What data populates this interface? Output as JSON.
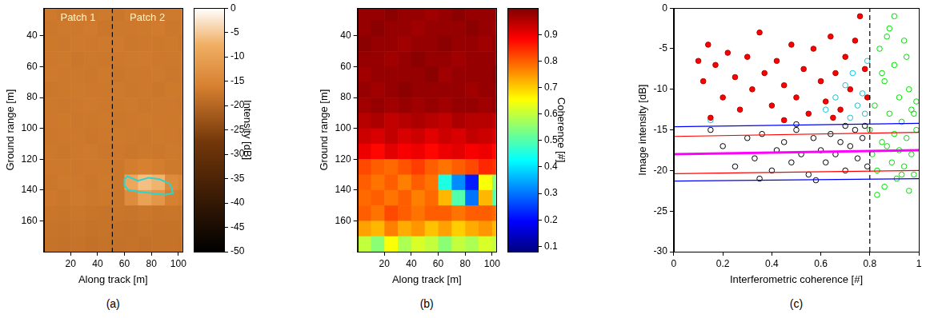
{
  "chart_data": [
    {
      "type": "heatmap",
      "panel_label": "(a)",
      "color": "copper",
      "grid": false,
      "x_label": "Along track [m]",
      "y_label": "Ground range [m]",
      "xlim": [
        0,
        103
      ],
      "xticks": [
        20,
        40,
        60,
        80,
        100
      ],
      "ylim": [
        22,
        180
      ],
      "yticks": [
        40,
        60,
        80,
        100,
        120,
        140,
        160
      ],
      "x_edges": [
        0,
        10,
        20,
        30,
        40,
        50,
        60,
        70,
        80,
        90,
        100,
        103
      ],
      "y_edges": [
        22,
        30,
        40,
        50,
        60,
        70,
        80,
        90,
        100,
        110,
        120,
        130,
        140,
        150,
        160,
        170,
        180
      ],
      "cells": [
        [
          -17,
          -17.5,
          -16.8,
          -17.2,
          -17,
          -17.4,
          -16.9,
          -17.1,
          -17.3,
          -17,
          -17.2
        ],
        [
          -17.3,
          -17,
          -17.2,
          -16.9,
          -17.4,
          -17.1,
          -17.2,
          -17,
          -16.8,
          -17.3,
          -17.1
        ],
        [
          -17.1,
          -17.3,
          -17,
          -17.2,
          -17,
          -16.9,
          -17.3,
          -17.2,
          -17.1,
          -17,
          -17.4
        ],
        [
          -17.2,
          -17,
          -17.4,
          -17.1,
          -17.3,
          -17.2,
          -17,
          -16.9,
          -17.2,
          -17.1,
          -17
        ],
        [
          -17,
          -17.2,
          -17.1,
          -17.3,
          -17,
          -17.4,
          -17.1,
          -17.2,
          -17,
          -17.3,
          -17.2
        ],
        [
          -17.4,
          -17.1,
          -17,
          -17.2,
          -17.1,
          -17,
          -17.3,
          -17.1,
          -17.4,
          -17,
          -17.1
        ],
        [
          -17.1,
          -17.3,
          -17.2,
          -17,
          -17.2,
          -17.1,
          -17,
          -17.3,
          -17.1,
          -17.2,
          -17.3
        ],
        [
          -17.2,
          -17,
          -17.3,
          -17.1,
          -17,
          -17.3,
          -17.2,
          -17,
          -17.2,
          -17.1,
          -17
        ],
        [
          -17.3,
          -17.2,
          -17.1,
          -17.4,
          -17.2,
          -17,
          -17.1,
          -17.3,
          -17,
          -17.2,
          -17.3
        ],
        [
          -17.1,
          -17.4,
          -17.2,
          -17,
          -17.3,
          -17.2,
          -17.4,
          -17.1,
          -17.3,
          -17,
          -17.2
        ],
        [
          -17.2,
          -17.1,
          -17.3,
          -17.2,
          -17.1,
          -17.3,
          -16.5,
          -16,
          -16.5,
          -17,
          -17.1
        ],
        [
          -17.5,
          -17,
          -17.2,
          -17.4,
          -17,
          -17.3,
          -9,
          -6,
          -7,
          -14,
          -15
        ],
        [
          -17.2,
          -17.5,
          -17,
          -17.3,
          -17.1,
          -17.4,
          -14,
          -10,
          -12,
          -16,
          -16.5
        ],
        [
          -17.6,
          -17.8,
          -17.5,
          -17.7,
          -17.9,
          -17.6,
          -17.8,
          -17.5,
          -17.7,
          -17.6,
          -17.8
        ],
        [
          -17.9,
          -18,
          -17.8,
          -18.1,
          -17.9,
          -18,
          -18.2,
          -17.9,
          -18,
          -18.1,
          -17.9
        ],
        [
          -18.1,
          -18.2,
          -18,
          -18.3,
          -18.1,
          -18.2,
          -18,
          -18.3,
          -18.1,
          -18,
          -18.2
        ]
      ],
      "colorbar": {
        "label": "Intensity [dB]",
        "lim": [
          -50,
          0
        ],
        "ticks": [
          -50,
          -45,
          -40,
          -35,
          -30,
          -25,
          -20,
          -15,
          -10,
          -5,
          0
        ]
      },
      "patch_labels": [
        "Patch 1",
        "Patch 2"
      ],
      "patch_boundary": 51,
      "contour": {
        "color": "#2ad4d4",
        "x": [
          60,
          62,
          70,
          78,
          86,
          94,
          96,
          90,
          80,
          70,
          63,
          60
        ],
        "y": [
          133,
          131,
          134,
          132,
          133,
          136,
          142,
          143,
          142,
          141,
          140,
          137
        ]
      }
    },
    {
      "type": "heatmap",
      "panel_label": "(b)",
      "color": "jet",
      "grid": false,
      "x_label": "Along track [m]",
      "y_label": "Ground range [m]",
      "xlim": [
        0,
        103
      ],
      "xticks": [
        20,
        40,
        60,
        80,
        100
      ],
      "ylim": [
        22,
        180
      ],
      "yticks": [
        40,
        60,
        80,
        100,
        120,
        140,
        160
      ],
      "x_edges": [
        0,
        10,
        20,
        30,
        40,
        50,
        60,
        70,
        80,
        90,
        100,
        103
      ],
      "y_edges": [
        22,
        30,
        40,
        50,
        60,
        70,
        80,
        90,
        100,
        110,
        120,
        130,
        140,
        150,
        160,
        170,
        180
      ],
      "cells": [
        [
          0.98,
          0.98,
          0.99,
          0.98,
          0.98,
          0.97,
          0.98,
          0.99,
          0.98,
          0.98,
          0.98
        ],
        [
          0.98,
          0.99,
          0.98,
          0.98,
          0.97,
          0.98,
          0.98,
          0.98,
          0.99,
          0.98,
          0.97
        ],
        [
          0.99,
          0.98,
          0.98,
          0.97,
          0.98,
          0.98,
          0.99,
          0.98,
          0.98,
          0.97,
          0.98
        ],
        [
          0.98,
          0.98,
          0.97,
          0.98,
          0.99,
          0.98,
          0.98,
          0.97,
          0.98,
          0.98,
          0.98
        ],
        [
          0.97,
          0.98,
          0.98,
          0.98,
          0.98,
          0.99,
          0.97,
          0.98,
          0.98,
          0.98,
          0.99
        ],
        [
          0.98,
          0.97,
          0.98,
          0.99,
          0.98,
          0.98,
          0.98,
          0.98,
          0.97,
          0.98,
          0.98
        ],
        [
          0.97,
          0.98,
          0.97,
          0.98,
          0.97,
          0.98,
          0.97,
          0.98,
          0.98,
          0.97,
          0.98
        ],
        [
          0.95,
          0.96,
          0.94,
          0.95,
          0.96,
          0.95,
          0.94,
          0.96,
          0.95,
          0.95,
          0.94
        ],
        [
          0.93,
          0.92,
          0.94,
          0.92,
          0.93,
          0.91,
          0.93,
          0.92,
          0.94,
          0.93,
          0.92
        ],
        [
          0.9,
          0.88,
          0.91,
          0.89,
          0.9,
          0.88,
          0.9,
          0.91,
          0.89,
          0.9,
          0.88
        ],
        [
          0.82,
          0.8,
          0.79,
          0.81,
          0.83,
          0.8,
          0.78,
          0.8,
          0.82,
          0.85,
          0.84
        ],
        [
          0.8,
          0.78,
          0.8,
          0.77,
          0.8,
          0.78,
          0.45,
          0.32,
          0.22,
          0.65,
          0.55
        ],
        [
          0.79,
          0.8,
          0.78,
          0.8,
          0.77,
          0.79,
          0.72,
          0.5,
          0.3,
          0.72,
          0.5
        ],
        [
          0.8,
          0.78,
          0.82,
          0.8,
          0.78,
          0.8,
          0.8,
          0.78,
          0.8,
          0.8,
          0.79
        ],
        [
          0.74,
          0.72,
          0.77,
          0.73,
          0.75,
          0.71,
          0.74,
          0.7,
          0.73,
          0.75,
          0.72
        ],
        [
          0.6,
          0.55,
          0.65,
          0.58,
          0.62,
          0.6,
          0.55,
          0.6,
          0.58,
          0.62,
          0.6
        ]
      ],
      "colorbar": {
        "label": "Coherence [#]",
        "lim": [
          0.08,
          1
        ],
        "ticks": [
          0.1,
          0.2,
          0.3,
          0.4,
          0.5,
          0.6,
          0.7,
          0.8,
          0.9
        ]
      }
    },
    {
      "type": "scatter",
      "panel_label": "(c)",
      "grid": false,
      "x_label": "Interferometric coherence [#]",
      "y_label": "Image intensity [dB]",
      "xlim": [
        0,
        1
      ],
      "xticks": [
        0,
        0.2,
        0.4,
        0.6,
        0.8,
        1
      ],
      "ylim": [
        -30,
        0
      ],
      "yticks": [
        -30,
        -25,
        -20,
        -15,
        -10,
        -5,
        0
      ],
      "series": [
        {
          "type": "scatter",
          "marker": "filled",
          "color": "#ff0000",
          "x": [
            0.1,
            0.12,
            0.14,
            0.17,
            0.2,
            0.22,
            0.25,
            0.27,
            0.3,
            0.32,
            0.35,
            0.37,
            0.4,
            0.42,
            0.45,
            0.48,
            0.5,
            0.53,
            0.55,
            0.57,
            0.6,
            0.62,
            0.64,
            0.66,
            0.68,
            0.7,
            0.72,
            0.74,
            0.76,
            0.78,
            0.79,
            0.15,
            0.45,
            0.65
          ],
          "y": [
            -6.5,
            -9,
            -4.5,
            -7,
            -11,
            -5.5,
            -8.5,
            -12.5,
            -6,
            -10,
            -3,
            -8,
            -12,
            -6.5,
            -9.5,
            -4.5,
            -11,
            -7.5,
            -13,
            -5,
            -9,
            -11.5,
            -3.5,
            -8,
            -12.5,
            -6,
            -10,
            -4,
            -1,
            -7.5,
            -11,
            -13.5,
            -13.8,
            -13.5
          ]
        },
        {
          "type": "scatter",
          "marker": "open",
          "color": "#17bfd0",
          "x": [
            0.62,
            0.66,
            0.7,
            0.73,
            0.75,
            0.77,
            0.79,
            0.78,
            0.15,
            0.72
          ],
          "y": [
            -12.5,
            -11,
            -9.5,
            -8,
            -12,
            -10.5,
            -6.5,
            -13,
            -13.8,
            -13.5
          ]
        },
        {
          "type": "scatter",
          "marker": "open",
          "color": "#000000",
          "x": [
            0.15,
            0.2,
            0.25,
            0.3,
            0.33,
            0.36,
            0.4,
            0.42,
            0.45,
            0.48,
            0.5,
            0.52,
            0.55,
            0.57,
            0.6,
            0.62,
            0.64,
            0.66,
            0.68,
            0.7,
            0.72,
            0.74,
            0.75,
            0.77,
            0.79,
            0.78,
            0.35,
            0.58,
            0.5,
            0.7
          ],
          "y": [
            -15,
            -17,
            -19.5,
            -16,
            -18.5,
            -15.5,
            -20,
            -17.5,
            -16.5,
            -19,
            -15,
            -18,
            -20.5,
            -16,
            -17.5,
            -19,
            -15.5,
            -18,
            -16.5,
            -20,
            -17,
            -15,
            -18.5,
            -16,
            -19.5,
            -14.5,
            -21,
            -21.2,
            -14.3,
            -14.5
          ]
        },
        {
          "type": "scatter",
          "marker": "open",
          "color": "#00dd00",
          "x": [
            0.8,
            0.81,
            0.82,
            0.83,
            0.84,
            0.85,
            0.86,
            0.86,
            0.87,
            0.88,
            0.88,
            0.89,
            0.9,
            0.9,
            0.91,
            0.92,
            0.92,
            0.93,
            0.94,
            0.94,
            0.95,
            0.96,
            0.96,
            0.97,
            0.98,
            0.98,
            0.99,
            0.99,
            0.83,
            0.9,
            0.85,
            0.95,
            0.87,
            0.97,
            0.93
          ],
          "y": [
            -15,
            -18,
            -12,
            -20,
            -5,
            -16.5,
            -22,
            -9,
            -17,
            -13,
            -2.5,
            -19,
            -15.5,
            -7,
            -21,
            -11,
            -17.5,
            -14,
            -19.5,
            -4,
            -16,
            -22.5,
            -10,
            -18,
            -13,
            -20.5,
            -15,
            -11.5,
            -23,
            -1,
            -8,
            -6,
            -3.5,
            -12.5,
            -20.5
          ]
        },
        {
          "type": "line",
          "color": "#0000ff",
          "line_style": "solid",
          "x": [
            0,
            1
          ],
          "y": [
            -14.6,
            -14.2
          ]
        },
        {
          "type": "line",
          "color": "#0000ff",
          "line_style": "solid",
          "x": [
            0,
            1
          ],
          "y": [
            -21.3,
            -21
          ]
        },
        {
          "type": "line",
          "color": "#ff0000",
          "line_style": "solid",
          "x": [
            0,
            1
          ],
          "y": [
            -15.8,
            -15.3
          ]
        },
        {
          "type": "line",
          "color": "#ff0000",
          "line_style": "solid",
          "x": [
            0,
            1
          ],
          "y": [
            -20.4,
            -20
          ]
        },
        {
          "type": "line",
          "color": "#ff00ff",
          "line_style": "thick",
          "x": [
            0,
            1
          ],
          "y": [
            -18,
            -17.5
          ]
        },
        {
          "type": "line",
          "color": "#000000",
          "line_style": "dashed",
          "x": [
            0.8,
            0.8
          ],
          "y": [
            -30,
            0
          ]
        }
      ]
    }
  ]
}
